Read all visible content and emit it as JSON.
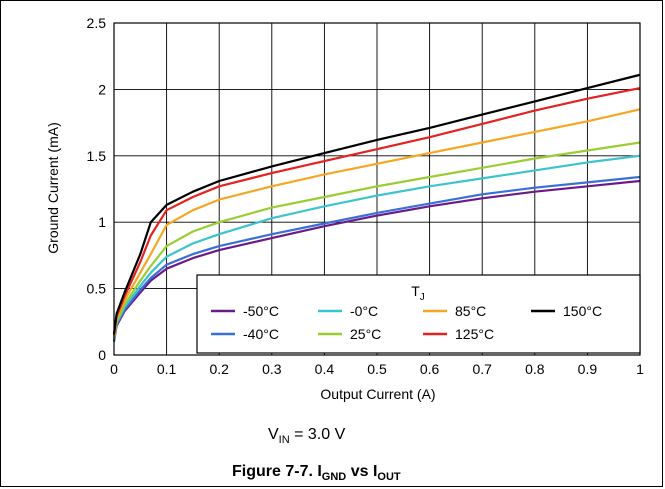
{
  "chart_data": {
    "type": "line",
    "title": "",
    "xlabel": "Output Current (A)",
    "ylabel": "Ground Current (mA)",
    "xlim": [
      0,
      1
    ],
    "ylim": [
      0,
      2.5
    ],
    "xticks": [
      0,
      0.1,
      0.2,
      0.3,
      0.4,
      0.5,
      0.6,
      0.7,
      0.8,
      0.9,
      1
    ],
    "xtick_labels": [
      "0",
      "0.1",
      "0.2",
      "0.3",
      "0.4",
      "0.5",
      "0.6",
      "0.7",
      "0.8",
      "0.9",
      "1"
    ],
    "yticks": [
      0,
      0.5,
      1,
      1.5,
      2,
      2.5
    ],
    "ytick_labels": [
      "0",
      "0.5",
      "1",
      "1.5",
      "2",
      "2.5"
    ],
    "grid": true,
    "legend": {
      "title": "T",
      "title_sub": "J",
      "placement": "bottom-right"
    },
    "series": [
      {
        "name": "-50°C",
        "color": "#6a1b8a",
        "x": [
          0,
          0.005,
          0.02,
          0.05,
          0.07,
          0.1,
          0.15,
          0.2,
          0.3,
          0.4,
          0.5,
          0.6,
          0.7,
          0.8,
          0.9,
          1
        ],
        "y": [
          0.1,
          0.22,
          0.33,
          0.47,
          0.56,
          0.65,
          0.73,
          0.79,
          0.88,
          0.97,
          1.05,
          1.12,
          1.18,
          1.23,
          1.27,
          1.31
        ]
      },
      {
        "name": "-40°C",
        "color": "#3a6fd8",
        "x": [
          0,
          0.005,
          0.02,
          0.05,
          0.07,
          0.1,
          0.15,
          0.2,
          0.3,
          0.4,
          0.5,
          0.6,
          0.7,
          0.8,
          0.9,
          1
        ],
        "y": [
          0.11,
          0.23,
          0.34,
          0.49,
          0.58,
          0.68,
          0.76,
          0.82,
          0.91,
          0.99,
          1.07,
          1.14,
          1.21,
          1.26,
          1.3,
          1.34
        ]
      },
      {
        "name": "-0°C",
        "color": "#3cc4cc",
        "x": [
          0,
          0.005,
          0.02,
          0.05,
          0.07,
          0.1,
          0.15,
          0.2,
          0.3,
          0.4,
          0.5,
          0.6,
          0.7,
          0.8,
          0.9,
          1
        ],
        "y": [
          0.12,
          0.24,
          0.36,
          0.52,
          0.62,
          0.74,
          0.84,
          0.91,
          1.03,
          1.12,
          1.2,
          1.27,
          1.33,
          1.39,
          1.45,
          1.5
        ]
      },
      {
        "name": "25°C",
        "color": "#9acd32",
        "x": [
          0,
          0.005,
          0.02,
          0.05,
          0.07,
          0.1,
          0.15,
          0.2,
          0.3,
          0.4,
          0.5,
          0.6,
          0.7,
          0.8,
          0.9,
          1
        ],
        "y": [
          0.13,
          0.25,
          0.38,
          0.56,
          0.67,
          0.82,
          0.93,
          1.0,
          1.11,
          1.19,
          1.27,
          1.34,
          1.41,
          1.48,
          1.54,
          1.6
        ]
      },
      {
        "name": "85°C",
        "color": "#f5a623",
        "x": [
          0,
          0.005,
          0.02,
          0.05,
          0.07,
          0.1,
          0.15,
          0.2,
          0.3,
          0.4,
          0.5,
          0.6,
          0.7,
          0.8,
          0.9,
          1
        ],
        "y": [
          0.14,
          0.27,
          0.41,
          0.62,
          0.76,
          0.98,
          1.09,
          1.17,
          1.27,
          1.36,
          1.44,
          1.52,
          1.6,
          1.68,
          1.76,
          1.85
        ]
      },
      {
        "name": "125°C",
        "color": "#e52222",
        "x": [
          0,
          0.005,
          0.02,
          0.05,
          0.07,
          0.1,
          0.15,
          0.2,
          0.3,
          0.4,
          0.5,
          0.6,
          0.7,
          0.8,
          0.9,
          1
        ],
        "y": [
          0.15,
          0.29,
          0.44,
          0.7,
          0.9,
          1.09,
          1.19,
          1.27,
          1.37,
          1.46,
          1.55,
          1.64,
          1.74,
          1.84,
          1.93,
          2.01
        ]
      },
      {
        "name": "150°C",
        "color": "#000000",
        "x": [
          0,
          0.005,
          0.02,
          0.05,
          0.07,
          0.1,
          0.15,
          0.2,
          0.3,
          0.4,
          0.5,
          0.6,
          0.7,
          0.8,
          0.9,
          1
        ],
        "y": [
          0.16,
          0.31,
          0.47,
          0.76,
          1.0,
          1.13,
          1.23,
          1.31,
          1.42,
          1.52,
          1.62,
          1.71,
          1.81,
          1.91,
          2.01,
          2.11
        ]
      }
    ]
  },
  "conditions": {
    "prefix": "V",
    "sub": "IN",
    "value": " = 3.0 V"
  },
  "caption": {
    "prefix": "Figure 7-7. I",
    "sub1": "GND",
    "mid": " vs I",
    "sub2": "OUT"
  }
}
